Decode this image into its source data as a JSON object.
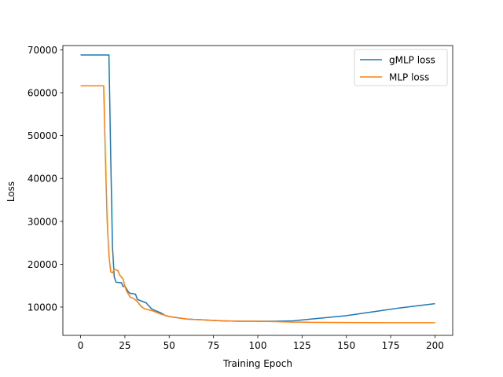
{
  "chart_data": {
    "type": "line",
    "title": "",
    "xlabel": "Training Epoch",
    "ylabel": "Loss",
    "xlim": [
      -10,
      210
    ],
    "ylim": [
      3400,
      71000
    ],
    "xticks": [
      0,
      25,
      50,
      75,
      100,
      125,
      150,
      175,
      200
    ],
    "yticks": [
      10000,
      20000,
      30000,
      40000,
      50000,
      60000,
      70000
    ],
    "grid": false,
    "legend": "top-right",
    "series": [
      {
        "name": "gMLP loss",
        "color": "#1f77b4",
        "points": [
          [
            0,
            68800
          ],
          [
            5,
            68800
          ],
          [
            10,
            68800
          ],
          [
            16,
            68800
          ],
          [
            17,
            45000
          ],
          [
            18,
            24000
          ],
          [
            19,
            17000
          ],
          [
            20,
            15800
          ],
          [
            22,
            15700
          ],
          [
            23,
            15700
          ],
          [
            24,
            14800
          ],
          [
            25,
            14900
          ],
          [
            27,
            13500
          ],
          [
            28,
            13200
          ],
          [
            30,
            13100
          ],
          [
            31,
            13000
          ],
          [
            32,
            11800
          ],
          [
            35,
            11300
          ],
          [
            37,
            11000
          ],
          [
            38,
            10500
          ],
          [
            40,
            9600
          ],
          [
            42,
            9200
          ],
          [
            45,
            8700
          ],
          [
            48,
            8000
          ],
          [
            50,
            7800
          ],
          [
            55,
            7500
          ],
          [
            60,
            7200
          ],
          [
            70,
            7000
          ],
          [
            80,
            6800
          ],
          [
            90,
            6700
          ],
          [
            100,
            6700
          ],
          [
            110,
            6700
          ],
          [
            120,
            6800
          ],
          [
            125,
            7000
          ],
          [
            130,
            7200
          ],
          [
            140,
            7600
          ],
          [
            150,
            8000
          ],
          [
            160,
            8600
          ],
          [
            170,
            9200
          ],
          [
            180,
            9800
          ],
          [
            190,
            10300
          ],
          [
            200,
            10800
          ]
        ]
      },
      {
        "name": "MLP loss",
        "color": "#ff7f0e",
        "points": [
          [
            0,
            61600
          ],
          [
            5,
            61600
          ],
          [
            10,
            61600
          ],
          [
            13,
            61600
          ],
          [
            14,
            45000
          ],
          [
            15,
            30000
          ],
          [
            16,
            22000
          ],
          [
            17,
            18200
          ],
          [
            18,
            18000
          ],
          [
            19,
            18800
          ],
          [
            20,
            18700
          ],
          [
            21,
            18500
          ],
          [
            22,
            17500
          ],
          [
            23,
            17000
          ],
          [
            24,
            16500
          ],
          [
            25,
            14800
          ],
          [
            26,
            13700
          ],
          [
            28,
            12300
          ],
          [
            30,
            12000
          ],
          [
            32,
            11300
          ],
          [
            34,
            10200
          ],
          [
            36,
            9600
          ],
          [
            40,
            9200
          ],
          [
            45,
            8400
          ],
          [
            50,
            7800
          ],
          [
            55,
            7500
          ],
          [
            60,
            7200
          ],
          [
            70,
            7000
          ],
          [
            80,
            6800
          ],
          [
            90,
            6700
          ],
          [
            100,
            6700
          ],
          [
            110,
            6600
          ],
          [
            120,
            6500
          ],
          [
            130,
            6450
          ],
          [
            150,
            6400
          ],
          [
            175,
            6350
          ],
          [
            200,
            6350
          ]
        ]
      }
    ]
  }
}
